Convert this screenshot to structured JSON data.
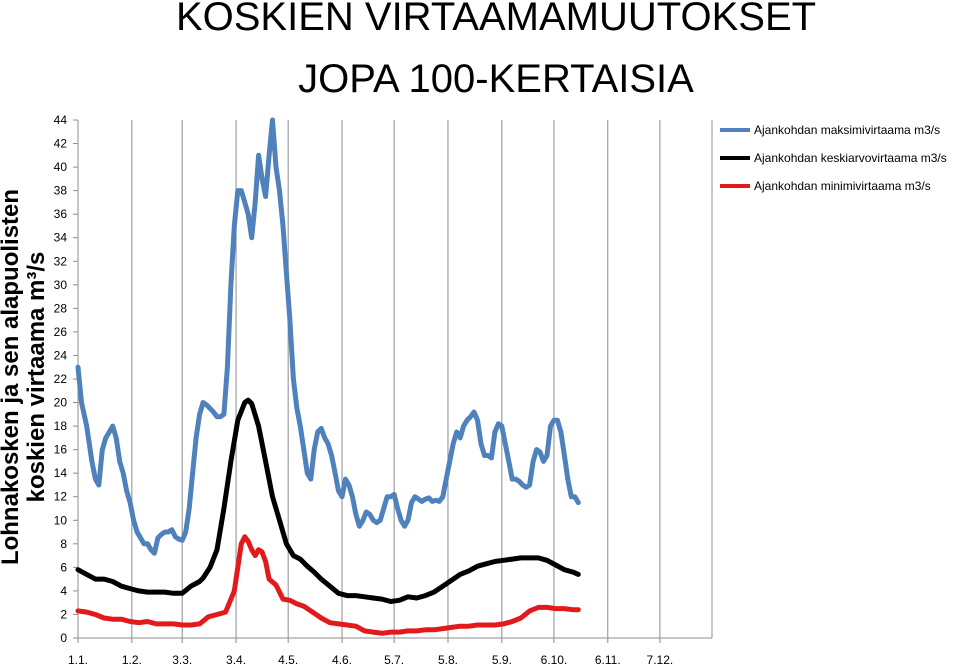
{
  "chart_data": {
    "type": "line",
    "title_lines": [
      "KOSKIEN VIRTAAMAMUUTOKSET",
      "JOPA 100-KERTAISIA"
    ],
    "ylabel_lines": [
      "Lohnakosken ja sen alapuolisten",
      "koskien virtaama m³/s"
    ],
    "ylim": [
      0,
      44
    ],
    "yticks": [
      "0",
      "2",
      "4",
      "6",
      "8",
      "10",
      "12",
      "14",
      "16",
      "18",
      "20",
      "22",
      "24",
      "26",
      "28",
      "30",
      "32",
      "34",
      "36",
      "38",
      "40",
      "42",
      "44"
    ],
    "xlim": [
      0,
      365
    ],
    "xtick_positions": [
      0,
      31,
      60,
      91,
      121,
      152,
      182,
      213,
      244,
      274,
      305,
      335
    ],
    "xtick_labels": [
      "1.1.",
      "1.2.",
      "3.3.",
      "3.4.",
      "4.5.",
      "4.6.",
      "5.7.",
      "5.8.",
      "5.9.",
      "6.10.",
      "6.11.",
      "7.12."
    ],
    "grid": "vertical",
    "legend_position": "top-right",
    "series": [
      {
        "name": "Ajankohdan maksimivirtaama m3/s",
        "color": "#4f81bd",
        "points": [
          [
            0,
            23
          ],
          [
            2,
            20
          ],
          [
            5,
            18
          ],
          [
            8,
            15
          ],
          [
            10,
            13.5
          ],
          [
            12,
            13
          ],
          [
            14,
            16
          ],
          [
            16,
            17
          ],
          [
            18,
            17.5
          ],
          [
            20,
            18
          ],
          [
            22,
            17
          ],
          [
            24,
            15
          ],
          [
            26,
            14
          ],
          [
            28,
            12.5
          ],
          [
            30,
            11.5
          ],
          [
            32,
            10
          ],
          [
            34,
            9
          ],
          [
            36,
            8.5
          ],
          [
            38,
            8
          ],
          [
            40,
            8
          ],
          [
            42,
            7.5
          ],
          [
            44,
            7.2
          ],
          [
            46,
            8.5
          ],
          [
            48,
            8.8
          ],
          [
            50,
            9
          ],
          [
            52,
            9
          ],
          [
            54,
            9.2
          ],
          [
            56,
            8.6
          ],
          [
            58,
            8.4
          ],
          [
            60,
            8.3
          ],
          [
            62,
            9
          ],
          [
            64,
            11
          ],
          [
            66,
            14
          ],
          [
            68,
            17
          ],
          [
            70,
            19
          ],
          [
            72,
            20
          ],
          [
            74,
            19.8
          ],
          [
            76,
            19.5
          ],
          [
            78,
            19.2
          ],
          [
            80,
            18.8
          ],
          [
            82,
            18.8
          ],
          [
            84,
            19
          ],
          [
            86,
            23
          ],
          [
            88,
            30
          ],
          [
            90,
            35
          ],
          [
            92,
            38
          ],
          [
            94,
            38
          ],
          [
            96,
            37
          ],
          [
            98,
            36
          ],
          [
            100,
            34
          ],
          [
            102,
            37
          ],
          [
            104,
            41
          ],
          [
            106,
            39
          ],
          [
            108,
            37.5
          ],
          [
            110,
            41
          ],
          [
            112,
            44
          ],
          [
            114,
            40
          ],
          [
            116,
            38
          ],
          [
            118,
            35
          ],
          [
            120,
            31
          ],
          [
            122,
            27
          ],
          [
            124,
            22
          ],
          [
            126,
            19.5
          ],
          [
            128,
            18
          ],
          [
            130,
            16
          ],
          [
            132,
            14
          ],
          [
            134,
            13.5
          ],
          [
            136,
            16
          ],
          [
            138,
            17.5
          ],
          [
            140,
            17.8
          ],
          [
            142,
            17
          ],
          [
            144,
            16.5
          ],
          [
            146,
            15.5
          ],
          [
            148,
            14
          ],
          [
            150,
            12.5
          ],
          [
            152,
            12
          ],
          [
            154,
            13.5
          ],
          [
            156,
            13
          ],
          [
            158,
            12
          ],
          [
            160,
            10.5
          ],
          [
            162,
            9.5
          ],
          [
            164,
            10
          ],
          [
            166,
            10.7
          ],
          [
            168,
            10.5
          ],
          [
            170,
            10
          ],
          [
            172,
            9.8
          ],
          [
            174,
            10
          ],
          [
            176,
            11
          ],
          [
            178,
            12
          ],
          [
            180,
            12
          ],
          [
            182,
            12.2
          ],
          [
            184,
            11
          ],
          [
            186,
            10
          ],
          [
            188,
            9.5
          ],
          [
            190,
            10
          ],
          [
            192,
            11.5
          ],
          [
            194,
            12
          ],
          [
            196,
            11.8
          ],
          [
            198,
            11.6
          ],
          [
            200,
            11.8
          ],
          [
            202,
            11.9
          ],
          [
            204,
            11.6
          ],
          [
            206,
            11.7
          ],
          [
            208,
            11.6
          ],
          [
            210,
            12
          ],
          [
            212,
            13.5
          ],
          [
            214,
            15
          ],
          [
            216,
            16.5
          ],
          [
            218,
            17.5
          ],
          [
            220,
            17
          ],
          [
            222,
            18
          ],
          [
            224,
            18.5
          ],
          [
            226,
            18.8
          ],
          [
            228,
            19.2
          ],
          [
            230,
            18.5
          ],
          [
            232,
            16.5
          ],
          [
            234,
            15.5
          ],
          [
            236,
            15.5
          ],
          [
            238,
            15.3
          ],
          [
            240,
            17.5
          ],
          [
            242,
            18.2
          ],
          [
            244,
            18
          ],
          [
            246,
            16.5
          ],
          [
            248,
            15
          ],
          [
            250,
            13.5
          ],
          [
            252,
            13.5
          ],
          [
            254,
            13.3
          ],
          [
            256,
            13
          ],
          [
            258,
            12.8
          ],
          [
            260,
            13
          ],
          [
            262,
            15
          ],
          [
            264,
            16
          ],
          [
            266,
            15.8
          ],
          [
            268,
            15
          ],
          [
            270,
            15.5
          ],
          [
            272,
            18
          ],
          [
            274,
            18.5
          ],
          [
            276,
            18.5
          ],
          [
            278,
            17.5
          ],
          [
            280,
            15.5
          ],
          [
            282,
            13.5
          ],
          [
            284,
            12
          ],
          [
            286,
            12
          ],
          [
            288,
            11.5
          ]
        ]
      },
      {
        "name": "Ajankohdan keskiarvovirtaama m3/s",
        "color": "#000000",
        "points": [
          [
            0,
            5.8
          ],
          [
            5,
            5.4
          ],
          [
            10,
            5
          ],
          [
            15,
            5
          ],
          [
            20,
            4.8
          ],
          [
            25,
            4.4
          ],
          [
            30,
            4.2
          ],
          [
            35,
            4
          ],
          [
            40,
            3.9
          ],
          [
            45,
            3.9
          ],
          [
            50,
            3.9
          ],
          [
            55,
            3.8
          ],
          [
            60,
            3.8
          ],
          [
            65,
            4.4
          ],
          [
            70,
            4.8
          ],
          [
            72,
            5.1
          ],
          [
            76,
            6
          ],
          [
            80,
            7.5
          ],
          [
            84,
            11
          ],
          [
            88,
            15
          ],
          [
            92,
            18.5
          ],
          [
            96,
            20
          ],
          [
            98,
            20.2
          ],
          [
            100,
            19.9
          ],
          [
            104,
            18
          ],
          [
            108,
            15
          ],
          [
            112,
            12
          ],
          [
            116,
            10
          ],
          [
            120,
            8
          ],
          [
            124,
            7
          ],
          [
            128,
            6.7
          ],
          [
            132,
            6.1
          ],
          [
            136,
            5.6
          ],
          [
            140,
            5
          ],
          [
            145,
            4.4
          ],
          [
            150,
            3.8
          ],
          [
            155,
            3.6
          ],
          [
            160,
            3.6
          ],
          [
            165,
            3.5
          ],
          [
            170,
            3.4
          ],
          [
            175,
            3.3
          ],
          [
            180,
            3.1
          ],
          [
            185,
            3.2
          ],
          [
            190,
            3.5
          ],
          [
            195,
            3.4
          ],
          [
            200,
            3.6
          ],
          [
            205,
            3.9
          ],
          [
            210,
            4.4
          ],
          [
            215,
            4.9
          ],
          [
            220,
            5.4
          ],
          [
            225,
            5.7
          ],
          [
            230,
            6.1
          ],
          [
            235,
            6.3
          ],
          [
            240,
            6.5
          ],
          [
            245,
            6.6
          ],
          [
            250,
            6.7
          ],
          [
            255,
            6.8
          ],
          [
            260,
            6.8
          ],
          [
            265,
            6.8
          ],
          [
            270,
            6.6
          ],
          [
            275,
            6.2
          ],
          [
            280,
            5.8
          ],
          [
            285,
            5.6
          ],
          [
            288,
            5.4
          ]
        ]
      },
      {
        "name": "Ajankohdan minimivirtaama m3/s",
        "color": "#e31a1c",
        "points": [
          [
            0,
            2.3
          ],
          [
            5,
            2.2
          ],
          [
            10,
            2
          ],
          [
            15,
            1.7
          ],
          [
            20,
            1.6
          ],
          [
            25,
            1.6
          ],
          [
            30,
            1.4
          ],
          [
            35,
            1.3
          ],
          [
            40,
            1.4
          ],
          [
            45,
            1.2
          ],
          [
            50,
            1.2
          ],
          [
            55,
            1.2
          ],
          [
            60,
            1.1
          ],
          [
            65,
            1.1
          ],
          [
            70,
            1.2
          ],
          [
            75,
            1.8
          ],
          [
            80,
            2
          ],
          [
            85,
            2.2
          ],
          [
            90,
            4
          ],
          [
            94,
            8
          ],
          [
            96,
            8.6
          ],
          [
            98,
            8.2
          ],
          [
            100,
            7.5
          ],
          [
            102,
            7
          ],
          [
            104,
            7.5
          ],
          [
            106,
            7.3
          ],
          [
            108,
            6.5
          ],
          [
            110,
            5
          ],
          [
            114,
            4.5
          ],
          [
            118,
            3.3
          ],
          [
            122,
            3.2
          ],
          [
            126,
            2.9
          ],
          [
            130,
            2.7
          ],
          [
            135,
            2.2
          ],
          [
            140,
            1.7
          ],
          [
            145,
            1.3
          ],
          [
            150,
            1.2
          ],
          [
            155,
            1.1
          ],
          [
            160,
            1
          ],
          [
            165,
            0.6
          ],
          [
            170,
            0.5
          ],
          [
            175,
            0.4
          ],
          [
            180,
            0.5
          ],
          [
            185,
            0.5
          ],
          [
            190,
            0.6
          ],
          [
            195,
            0.6
          ],
          [
            200,
            0.7
          ],
          [
            205,
            0.7
          ],
          [
            210,
            0.8
          ],
          [
            215,
            0.9
          ],
          [
            220,
            1
          ],
          [
            225,
            1
          ],
          [
            230,
            1.1
          ],
          [
            235,
            1.1
          ],
          [
            240,
            1.1
          ],
          [
            245,
            1.2
          ],
          [
            250,
            1.4
          ],
          [
            255,
            1.7
          ],
          [
            260,
            2.3
          ],
          [
            265,
            2.6
          ],
          [
            270,
            2.6
          ],
          [
            275,
            2.5
          ],
          [
            280,
            2.5
          ],
          [
            285,
            2.4
          ],
          [
            288,
            2.4
          ]
        ]
      }
    ]
  }
}
